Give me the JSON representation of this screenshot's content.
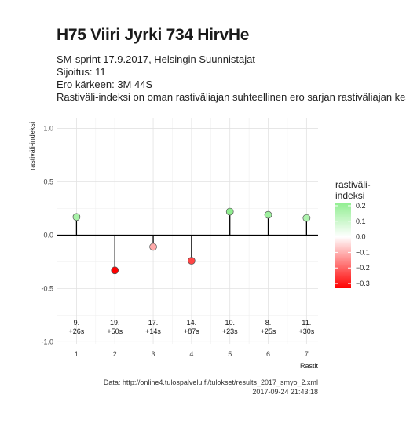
{
  "title": "H75 Viiri Jyrki 734 HirvHe",
  "subtitle_lines": [
    "SM-sprint 17.9.2017, Helsingin Suunnistajat",
    "Sijoitus: 11",
    "Ero kärkeen: 3M 44S",
    "Rastiväli-indeksi on oman rastiväliajan suhteellinen ero sarjan rastiväliajan kes"
  ],
  "caption_lines": [
    "Data: http://online4.tulospalvelu.fi/tulokset/results_2017_smyo_2.xml",
    "2017-09-24 21:43:18"
  ],
  "chart_data": {
    "type": "scatter",
    "xlabel": "Rastit",
    "ylabel": "rastiväli-indeksi",
    "xlim": [
      0.5,
      7.3
    ],
    "ylim": [
      -1.02,
      1.1
    ],
    "x_ticks": [
      "1",
      "2",
      "3",
      "4",
      "5",
      "6",
      "7"
    ],
    "y_ticks": [
      -1.0,
      -0.5,
      0.0,
      0.5,
      1.0
    ],
    "y_tick_labels": [
      "-1.0",
      "-0.5",
      "0.0",
      "0.5",
      "1.0"
    ],
    "grid": true,
    "points": [
      {
        "x": 1,
        "y": 0.17,
        "label_line1": "9.",
        "label_line2": "+26s"
      },
      {
        "x": 2,
        "y": -0.33,
        "label_line1": "19.",
        "label_line2": "+50s"
      },
      {
        "x": 3,
        "y": -0.11,
        "label_line1": "17.",
        "label_line2": "+14s"
      },
      {
        "x": 4,
        "y": -0.24,
        "label_line1": "14.",
        "label_line2": "+87s"
      },
      {
        "x": 5,
        "y": 0.22,
        "label_line1": "10.",
        "label_line2": "+23s"
      },
      {
        "x": 6,
        "y": 0.19,
        "label_line1": "8.",
        "label_line2": "+25s"
      },
      {
        "x": 7,
        "y": 0.16,
        "label_line1": "11.",
        "label_line2": "+30s"
      }
    ],
    "legend": {
      "title_lines": [
        "rastiväli-",
        "indeksi"
      ],
      "placement": "right",
      "ticks": [
        0.2,
        0.1,
        0.0,
        -0.1,
        -0.2,
        -0.3
      ],
      "tick_labels": [
        "0.2",
        "0.1",
        "0.0",
        "−0.1",
        "−0.2",
        "−0.3"
      ],
      "range": [
        -0.33,
        0.22
      ],
      "color_high": "#90ee90",
      "color_mid": "#ffffff",
      "color_low": "#ff0000"
    }
  }
}
